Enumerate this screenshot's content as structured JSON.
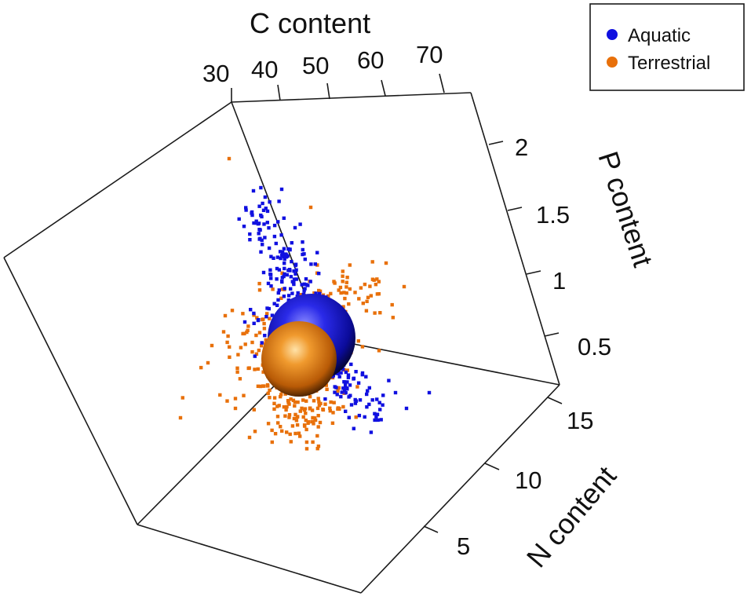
{
  "chart_data": {
    "type": "scatter",
    "dimensions": 3,
    "axes": {
      "x": {
        "label": "C content",
        "ticks": [
          "30",
          "40",
          "50",
          "60",
          "70"
        ]
      },
      "y": {
        "label": "P content",
        "ticks": [
          "2",
          "1.5",
          "1",
          "0.5"
        ]
      },
      "z": {
        "label": "N content",
        "ticks": [
          "15",
          "10",
          "5"
        ]
      }
    },
    "legend": {
      "placement": "top-right",
      "entries": [
        "Aquatic",
        "Terrestrial"
      ]
    },
    "series": [
      {
        "name": "Aquatic",
        "color": "#1010e0",
        "centroid_marker": "sphere"
      },
      {
        "name": "Terrestrial",
        "color": "#e8700a",
        "centroid_marker": "sphere"
      }
    ],
    "grid": false
  }
}
